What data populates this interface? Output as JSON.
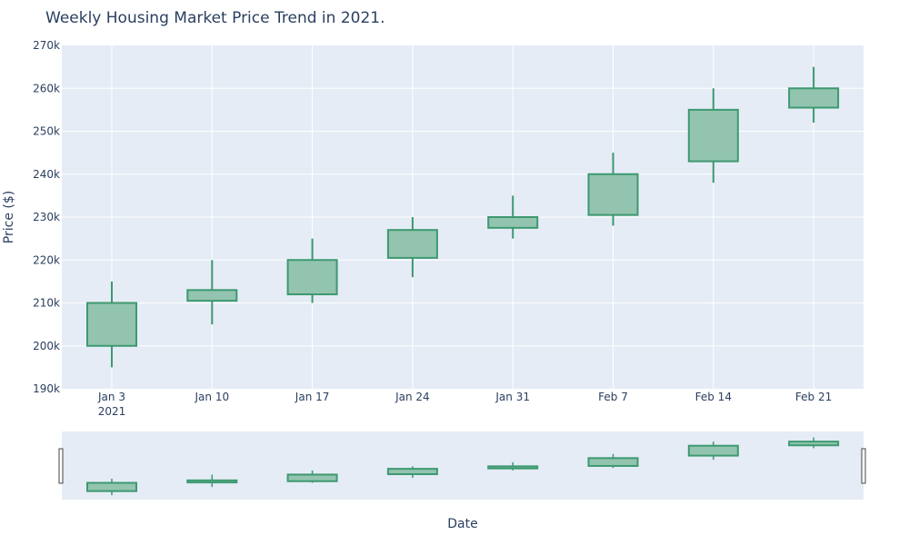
{
  "chart_data": {
    "type": "candlestick",
    "title": "Weekly Housing Market Price Trend in 2021.",
    "xlabel": "Date",
    "ylabel": "Price ($)",
    "ylim": [
      190000,
      270000
    ],
    "y_ticks": [
      190000,
      200000,
      210000,
      220000,
      230000,
      240000,
      250000,
      260000,
      270000
    ],
    "y_tick_labels": [
      "190k",
      "200k",
      "210k",
      "220k",
      "230k",
      "240k",
      "250k",
      "260k",
      "270k"
    ],
    "x_tick_labels": [
      "Jan 3",
      "Jan 10",
      "Jan 17",
      "Jan 24",
      "Jan 31",
      "Feb 7",
      "Feb 14",
      "Feb 21"
    ],
    "x_year_label": "2021",
    "grid": true,
    "rangeslider": true,
    "colors": {
      "increasing_line": "#3d9970",
      "increasing_fill": "#93c4b0",
      "plot_bg": "#e5ecf6",
      "grid": "#ffffff",
      "text": "#2a3f5f"
    },
    "candles": [
      {
        "date": "2021-01-03",
        "open": 200000,
        "high": 215000,
        "low": 195000,
        "close": 210000
      },
      {
        "date": "2021-01-10",
        "open": 210500,
        "high": 220000,
        "low": 205000,
        "close": 213000
      },
      {
        "date": "2021-01-17",
        "open": 212000,
        "high": 225000,
        "low": 210000,
        "close": 220000
      },
      {
        "date": "2021-01-24",
        "open": 220500,
        "high": 230000,
        "low": 216000,
        "close": 227000
      },
      {
        "date": "2021-01-31",
        "open": 227500,
        "high": 235000,
        "low": 225000,
        "close": 230000
      },
      {
        "date": "2021-02-07",
        "open": 230500,
        "high": 245000,
        "low": 228000,
        "close": 240000
      },
      {
        "date": "2021-02-14",
        "open": 243000,
        "high": 260000,
        "low": 238000,
        "close": 255000
      },
      {
        "date": "2021-02-21",
        "open": 255500,
        "high": 265000,
        "low": 252000,
        "close": 260000
      }
    ]
  }
}
